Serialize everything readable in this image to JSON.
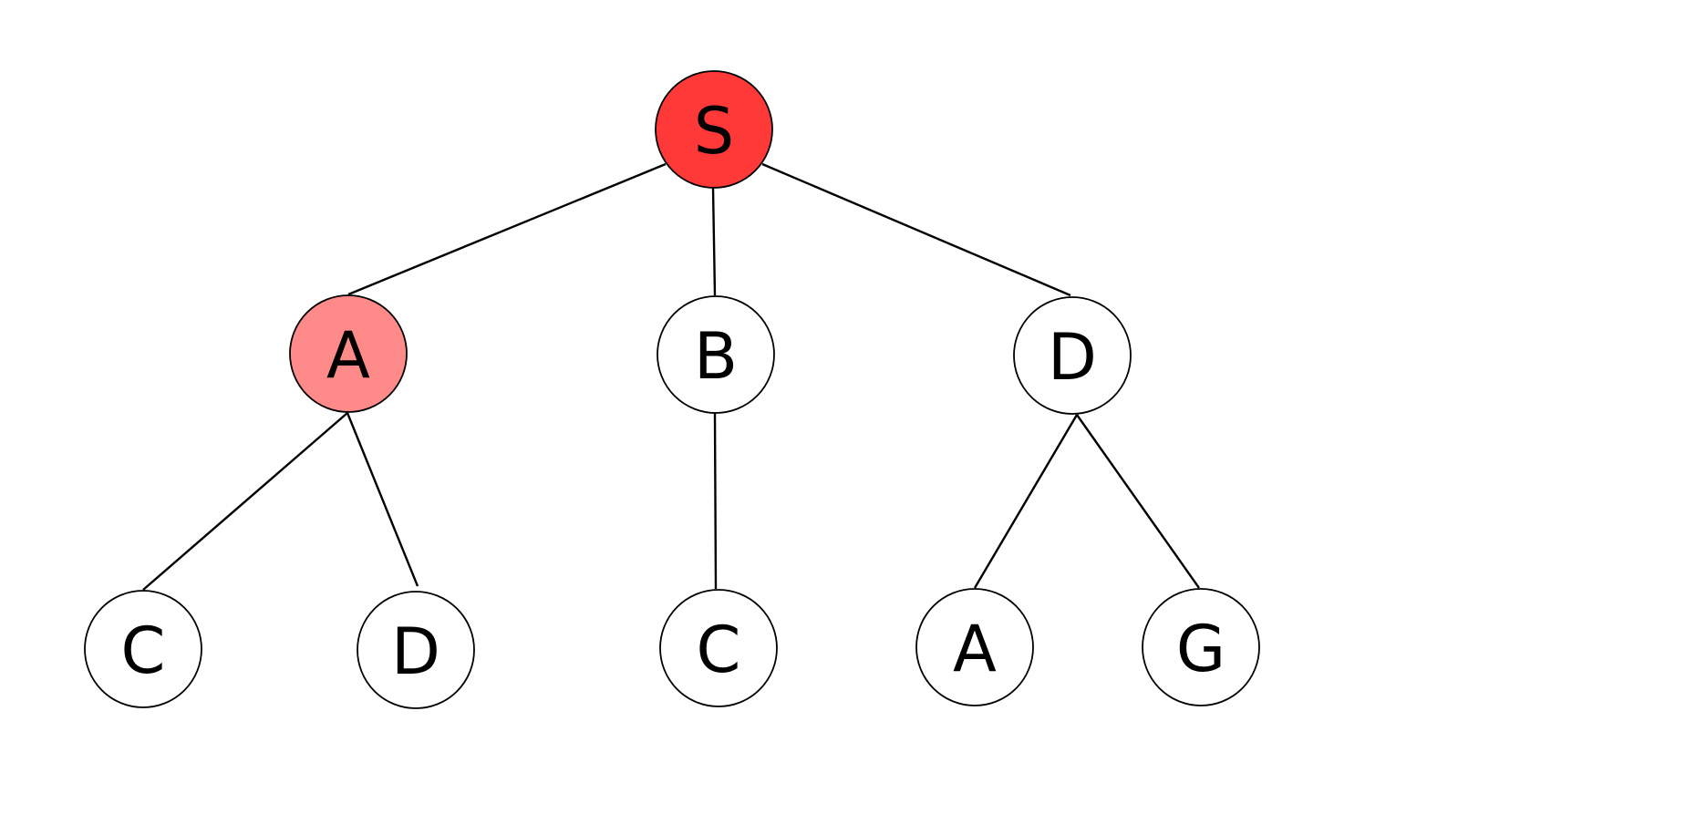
{
  "diagram": {
    "nodes": [
      {
        "id": "s",
        "label": "S",
        "fill": "#ff3838"
      },
      {
        "id": "a1",
        "label": "A",
        "fill": "#ff8a8a"
      },
      {
        "id": "b",
        "label": "B",
        "fill": "#ffffff"
      },
      {
        "id": "d1",
        "label": "D",
        "fill": "#ffffff"
      },
      {
        "id": "c1",
        "label": "C",
        "fill": "#ffffff"
      },
      {
        "id": "d2",
        "label": "D",
        "fill": "#ffffff"
      },
      {
        "id": "c2",
        "label": "C",
        "fill": "#ffffff"
      },
      {
        "id": "a2",
        "label": "A",
        "fill": "#ffffff"
      },
      {
        "id": "g",
        "label": "G",
        "fill": "#ffffff"
      }
    ],
    "edges": [
      {
        "from": "s",
        "to": "a1"
      },
      {
        "from": "s",
        "to": "b"
      },
      {
        "from": "s",
        "to": "d1"
      },
      {
        "from": "a1",
        "to": "c1"
      },
      {
        "from": "a1",
        "to": "d2"
      },
      {
        "from": "b",
        "to": "c2"
      },
      {
        "from": "d1",
        "to": "a2"
      },
      {
        "from": "d1",
        "to": "g"
      }
    ],
    "colors": {
      "root_fill": "#ff3838",
      "highlight_fill": "#ff8a8a",
      "default_fill": "#ffffff",
      "stroke": "#000000"
    }
  }
}
